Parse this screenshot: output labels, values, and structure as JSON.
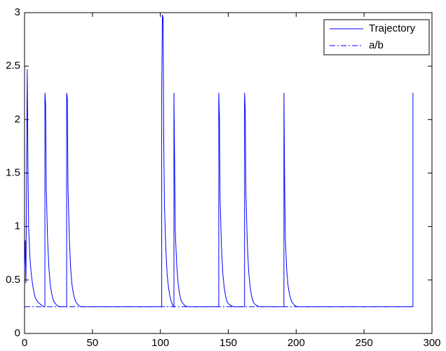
{
  "chart_data": {
    "type": "line",
    "xlim": [
      0,
      300
    ],
    "xticks": [
      0,
      50,
      100,
      150,
      200,
      250,
      300
    ],
    "ylim": [
      0,
      3
    ],
    "yticks": [
      0,
      0.5,
      1,
      1.5,
      2,
      2.5,
      3
    ],
    "legend": "upper right",
    "series": [
      {
        "name": "Trajectory",
        "color": "#0000ff",
        "style": "solid",
        "x": [
          0,
          0.5,
          1,
          2,
          2.5,
          3,
          4,
          5,
          6,
          7,
          8,
          10,
          12,
          14,
          15,
          15,
          15.5,
          16,
          17,
          18,
          19,
          20,
          21,
          22,
          24,
          26,
          31,
          31,
          31.5,
          32,
          33,
          34,
          35,
          36,
          37,
          38,
          40,
          42,
          101,
          101,
          101.5,
          102,
          102.5,
          103,
          104,
          105,
          106,
          107,
          108,
          109,
          110,
          110,
          110.5,
          111,
          112,
          113,
          114,
          115,
          116,
          118,
          120,
          143,
          143,
          143.5,
          144,
          145,
          146,
          147,
          148,
          149,
          150,
          152,
          154,
          162,
          162,
          162.5,
          163,
          164,
          165,
          166,
          167,
          168,
          169,
          171,
          173,
          191,
          191,
          191.5,
          192,
          193,
          194,
          195,
          196,
          197,
          199,
          201,
          286,
          286
        ],
        "values": [
          0.6,
          0.87,
          0.47,
          2.47,
          1.57,
          1.0,
          0.7,
          0.55,
          0.45,
          0.38,
          0.33,
          0.29,
          0.27,
          0.25,
          0.25,
          2.25,
          2.15,
          1.35,
          0.87,
          0.6,
          0.45,
          0.37,
          0.32,
          0.29,
          0.26,
          0.25,
          0.25,
          2.25,
          2.2,
          1.37,
          0.88,
          0.6,
          0.45,
          0.37,
          0.32,
          0.29,
          0.26,
          0.25,
          0.25,
          2.25,
          2.98,
          2.95,
          1.8,
          1.2,
          0.8,
          0.55,
          0.43,
          0.35,
          0.3,
          0.27,
          0.25,
          2.25,
          1.6,
          0.95,
          0.65,
          0.48,
          0.38,
          0.32,
          0.29,
          0.26,
          0.25,
          0.25,
          2.25,
          2.03,
          1.25,
          0.8,
          0.56,
          0.43,
          0.35,
          0.3,
          0.28,
          0.26,
          0.25,
          0.25,
          2.25,
          2.1,
          1.3,
          0.85,
          0.58,
          0.45,
          0.36,
          0.31,
          0.28,
          0.26,
          0.25,
          0.25,
          2.25,
          1.42,
          0.9,
          0.6,
          0.45,
          0.37,
          0.32,
          0.29,
          0.26,
          0.25,
          0.25,
          2.25
        ]
      },
      {
        "name": "a/b",
        "color": "#0000ff",
        "style": "dashdot",
        "x": [
          0,
          286
        ],
        "values": [
          0.25,
          0.25
        ]
      }
    ]
  }
}
